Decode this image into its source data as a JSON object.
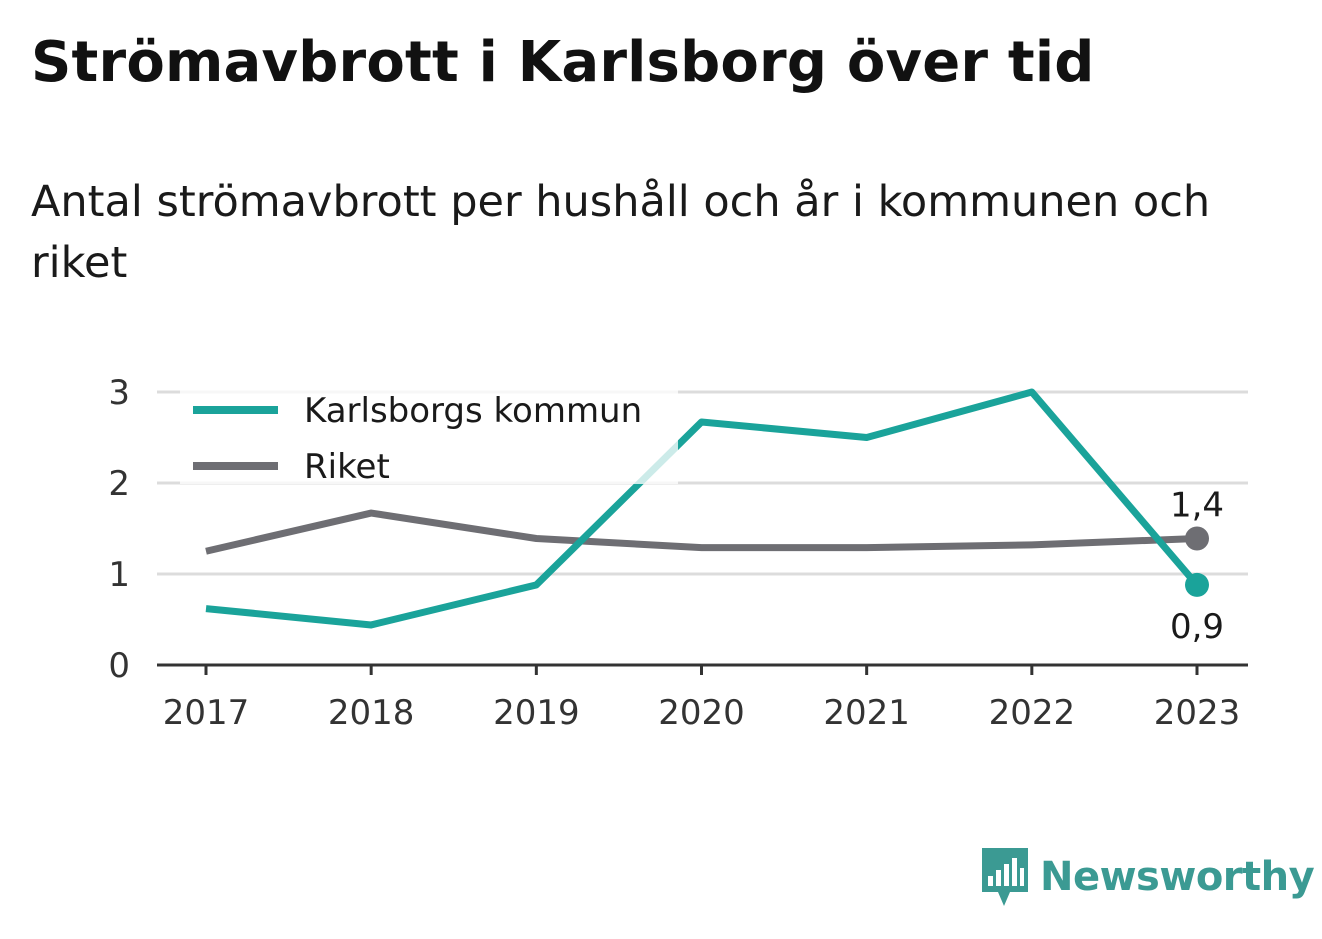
{
  "title": "Strömavbrott i Karlsborg över tid",
  "subtitle": "Antal strömavbrott per hushåll och år i kommunen och riket",
  "brand": {
    "name": "Newsworthy",
    "icon": "bar-chart-speech-bubble-icon",
    "color": "#3b9a93"
  },
  "chart_data": {
    "type": "line",
    "title": "Strömavbrott i Karlsborg över tid",
    "subtitle": "Antal strömavbrott per hushåll och år i kommunen och riket",
    "xlabel": "",
    "ylabel": "",
    "x": [
      "2017",
      "2018",
      "2019",
      "2020",
      "2021",
      "2022",
      "2023"
    ],
    "ylim": [
      0,
      3
    ],
    "yticks": [
      "0",
      "1",
      "2",
      "3"
    ],
    "grid": true,
    "legend_position": "top-left",
    "series": [
      {
        "name": "Karlsborgs kommun",
        "color": "#1aa39a",
        "values": [
          0.62,
          0.44,
          0.88,
          2.67,
          2.5,
          3.0,
          0.88
        ],
        "end_label": "0,9"
      },
      {
        "name": "Riket",
        "color": "#6e6e73",
        "values": [
          1.25,
          1.67,
          1.39,
          1.29,
          1.29,
          1.32,
          1.39
        ],
        "end_label": "1,4"
      }
    ]
  }
}
